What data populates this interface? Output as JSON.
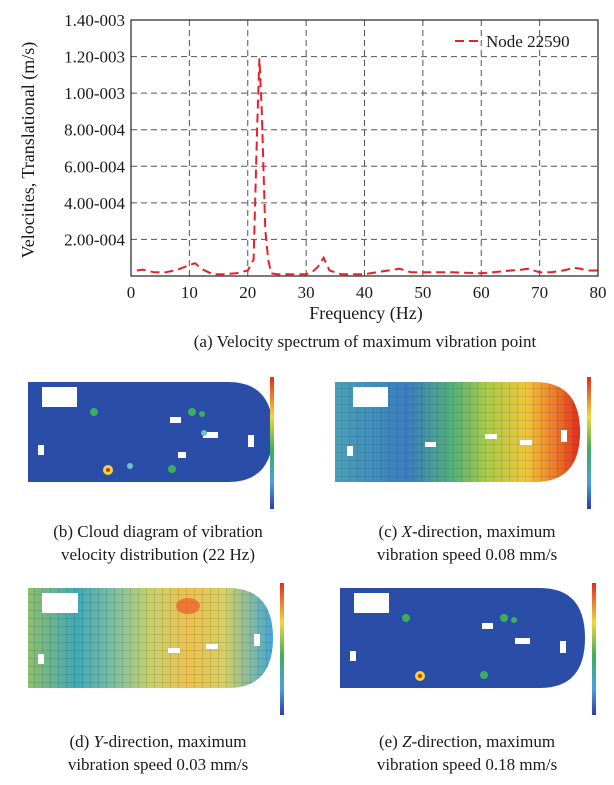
{
  "chart_data": {
    "type": "line",
    "title": "",
    "xlabel": "Frequency (Hz)",
    "ylabel": "Velocities, Translational (m/s)",
    "xlim": [
      0,
      80
    ],
    "ylim": [
      0,
      0.0014
    ],
    "x_ticks": [
      0,
      10,
      20,
      30,
      40,
      50,
      60,
      70,
      80
    ],
    "x_tick_labels": [
      "0",
      "10",
      "20",
      "30",
      "40",
      "50",
      "60",
      "70",
      "80"
    ],
    "y_ticks": [
      0.0002,
      0.0004,
      0.0006,
      0.0008,
      0.001,
      0.0012,
      0.0014
    ],
    "y_tick_labels": [
      "2.00-004",
      "4.00-004",
      "6.00-004",
      "8.00-004",
      "1.00-003",
      "1.20-003",
      "1.40-003"
    ],
    "grid": true,
    "legend_position": "top-right",
    "series": [
      {
        "name": "Node 22590",
        "color": "#e8202a",
        "style": "dashed",
        "x": [
          1,
          2,
          4,
          6,
          8,
          10,
          11,
          12,
          14,
          16,
          18,
          20,
          21,
          21.6,
          22,
          22.4,
          23,
          23.5,
          24,
          25,
          27,
          30,
          31,
          32,
          33,
          34,
          36,
          40,
          42,
          45,
          46,
          48,
          50,
          55,
          60,
          62,
          65,
          67,
          68,
          70,
          72,
          74,
          76,
          77,
          78,
          80
        ],
        "y": [
          3e-05,
          3.5e-05,
          2e-05,
          2e-05,
          3.5e-05,
          6e-05,
          7e-05,
          4e-05,
          1e-05,
          1e-05,
          1.5e-05,
          3e-05,
          9e-05,
          0.0008,
          0.00119,
          0.0009,
          0.00025,
          9e-05,
          1.5e-05,
          1e-05,
          1e-05,
          1e-05,
          2e-05,
          5e-05,
          0.0001,
          3e-05,
          1e-05,
          1e-05,
          2e-05,
          3.5e-05,
          4e-05,
          2e-05,
          2e-05,
          2e-05,
          1.5e-05,
          2e-05,
          3e-05,
          3.5e-05,
          4e-05,
          2e-05,
          2e-05,
          3e-05,
          4.5e-05,
          4e-05,
          3e-05,
          3e-05
        ]
      }
    ]
  },
  "captions": {
    "a": "(a) Velocity spectrum of maximum vibration point",
    "b_line1": "(b) Cloud diagram of vibration",
    "b_line2": "velocity distribution (22 Hz)",
    "c_axis": "X",
    "c_line1_rest": "-direction, maximum",
    "c_line2": "vibration speed 0.08 mm/s",
    "d_axis": "Y",
    "d_line1_rest": "-direction, maximum",
    "d_line2": "vibration speed 0.03 mm/s",
    "e_axis": "Z",
    "e_line1_rest": "-direction, maximum",
    "e_line2": "vibration speed 0.18 mm/s",
    "c_prefix": "(c) ",
    "d_prefix": "(d) ",
    "e_prefix": "(e) "
  },
  "colors": {
    "deck_blue": "#2a4ea8",
    "hot_red": "#e32b1c",
    "mid_green": "#3fae5a",
    "yellow": "#f0d83a"
  }
}
